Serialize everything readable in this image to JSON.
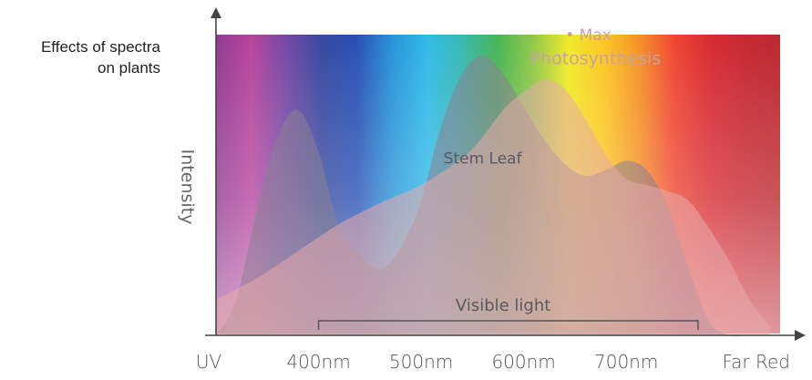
{
  "title_lines": [
    "Effects of spectra",
    "on plants"
  ],
  "chart_data": {
    "type": "area",
    "title": "Effects of spectra on plants",
    "xlabel": "",
    "ylabel": "Intensity",
    "x_tick_labels": [
      "UV",
      "400nm",
      "500nm",
      "600nm",
      "700nm",
      "Far Red"
    ],
    "x_tick_values": [
      300,
      400,
      500,
      600,
      700,
      800
    ],
    "xlim": [
      300,
      850
    ],
    "ylim": [
      0,
      1
    ],
    "grid": false,
    "series": [
      {
        "name": "Stem Leaf",
        "color": "#8a7f93",
        "x": [
          300,
          320,
          340,
          360,
          380,
          400,
          420,
          440,
          460,
          480,
          500,
          520,
          540,
          560,
          580,
          600,
          620,
          640,
          660,
          680,
          700,
          720,
          740,
          760,
          780,
          800,
          820,
          840
        ],
        "y": [
          0.0,
          0.12,
          0.42,
          0.66,
          0.75,
          0.61,
          0.36,
          0.27,
          0.22,
          0.29,
          0.45,
          0.7,
          0.87,
          0.93,
          0.87,
          0.76,
          0.65,
          0.57,
          0.53,
          0.55,
          0.58,
          0.55,
          0.43,
          0.23,
          0.05,
          0.0,
          0.0,
          0.0
        ]
      },
      {
        "name": "Max Photosynthesis",
        "color": "#e8a9a9",
        "x": [
          300,
          340,
          380,
          420,
          460,
          500,
          540,
          560,
          580,
          600,
          620,
          640,
          660,
          680,
          700,
          720,
          740,
          760,
          780,
          800,
          820,
          840
        ],
        "y": [
          0.12,
          0.19,
          0.28,
          0.37,
          0.44,
          0.5,
          0.59,
          0.66,
          0.75,
          0.81,
          0.85,
          0.82,
          0.72,
          0.6,
          0.52,
          0.5,
          0.48,
          0.45,
          0.36,
          0.25,
          0.12,
          0.03
        ]
      }
    ],
    "annotations": [
      {
        "text": "Stem Leaf",
        "x": 560,
        "y": 0.59
      },
      {
        "text": "• Max",
        "x": 663,
        "y": 1.0
      },
      {
        "text": "Photosynthesis",
        "x": 670,
        "y": 0.92
      },
      {
        "text": "Visible light",
        "x": 580,
        "y": 0.1
      }
    ],
    "visible_range": [
      400,
      770
    ],
    "spectrum_colors": [
      "#8b2f8c",
      "#b33b97",
      "#6b3fa0",
      "#2c3f9b",
      "#1d47b0",
      "#1c8fd6",
      "#26b7e6",
      "#2db5a8",
      "#3fb24a",
      "#8cc63f",
      "#f0e91c",
      "#fbc419",
      "#f48c1c",
      "#ee3b27",
      "#d42027",
      "#c31c26",
      "#b71c24"
    ]
  }
}
